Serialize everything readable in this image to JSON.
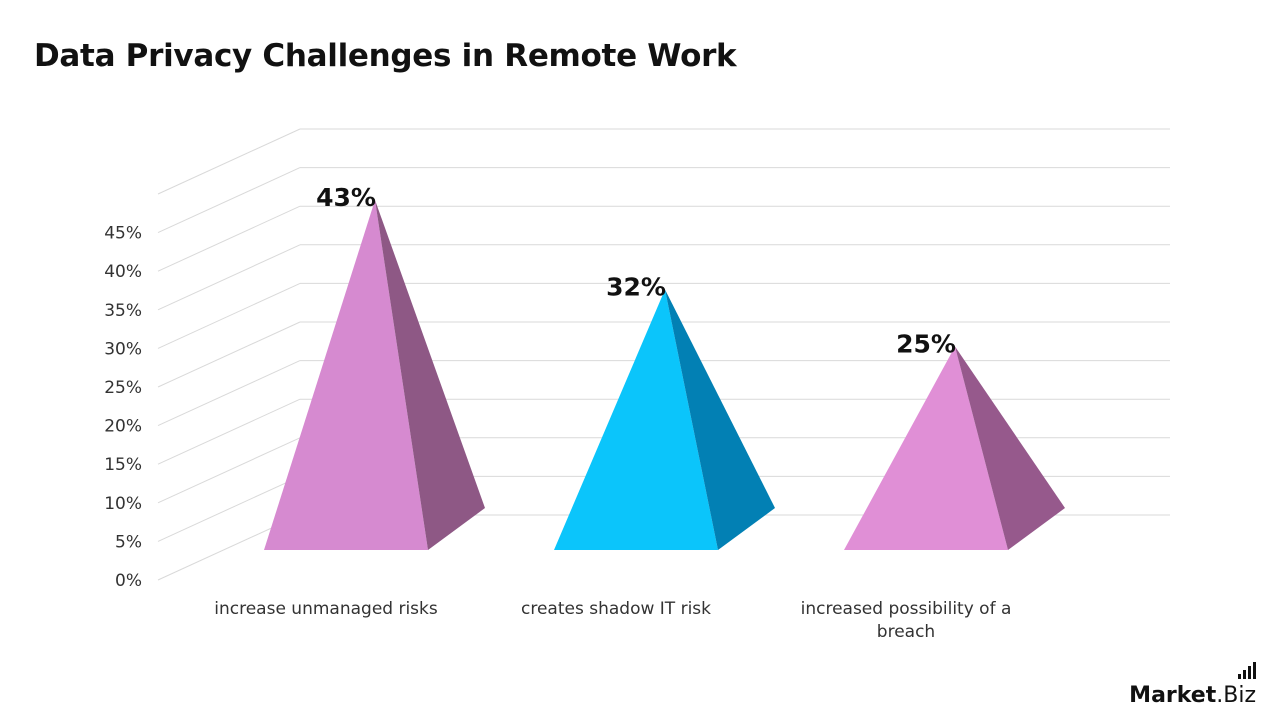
{
  "title": "Data Privacy Challenges in Remote Work",
  "brand": {
    "name_bold": "Market",
    "name_light": ".Biz"
  },
  "chart_data": {
    "type": "bar",
    "shape": "3d-pyramid",
    "title": "Data Privacy Challenges in Remote Work",
    "categories": [
      "increase unmanaged risks",
      "creates shadow IT risk",
      "increased possibility of a breach"
    ],
    "values": [
      43,
      32,
      25
    ],
    "data_labels": [
      "43%",
      "32%",
      "25%"
    ],
    "ylim": [
      0,
      45
    ],
    "yticks": [
      0,
      5,
      10,
      15,
      20,
      25,
      30,
      35,
      40,
      45
    ],
    "ytick_labels": [
      "0%",
      "5%",
      "10%",
      "15%",
      "20%",
      "25%",
      "30%",
      "35%",
      "40%",
      "45%"
    ],
    "grid": true,
    "legend": "none",
    "colors": [
      {
        "front": "#d68ad0",
        "side": "#8e5885"
      },
      {
        "front": "#0bc5fb",
        "side": "#0280b4"
      },
      {
        "front": "#e08fd6",
        "side": "#96598c"
      }
    ]
  }
}
